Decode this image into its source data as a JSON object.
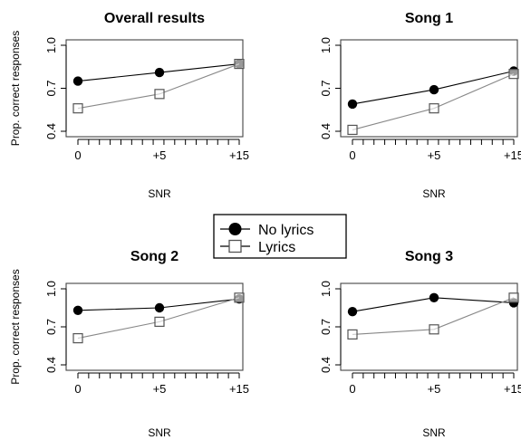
{
  "chart_data": [
    {
      "type": "line",
      "title": "Overall results",
      "xlabel": "SNR",
      "ylabel": "Prop. correct responses",
      "categories": [
        "0",
        "+5",
        "+15"
      ],
      "ylim": [
        0.4,
        1.0
      ],
      "yticks": [
        "0.4",
        "0.7",
        "1.0"
      ],
      "grid": false,
      "series": [
        {
          "name": "No lyrics",
          "marker": "filled-circle",
          "values": [
            0.75,
            0.81,
            0.87
          ]
        },
        {
          "name": "Lyrics",
          "marker": "open-square",
          "values": [
            0.56,
            0.66,
            0.87
          ]
        }
      ]
    },
    {
      "type": "line",
      "title": "Song 1",
      "xlabel": "SNR",
      "ylabel": "",
      "categories": [
        "0",
        "+5",
        "+15"
      ],
      "ylim": [
        0.4,
        1.0
      ],
      "yticks": [
        "0.4",
        "0.7",
        "1.0"
      ],
      "grid": false,
      "series": [
        {
          "name": "No lyrics",
          "marker": "filled-circle",
          "values": [
            0.59,
            0.69,
            0.82
          ]
        },
        {
          "name": "Lyrics",
          "marker": "open-square",
          "values": [
            0.41,
            0.56,
            0.8
          ]
        }
      ]
    },
    {
      "type": "line",
      "title": "Song 2",
      "xlabel": "SNR",
      "ylabel": "Prop. correct responses",
      "categories": [
        "0",
        "+5",
        "+15"
      ],
      "ylim": [
        0.4,
        1.0
      ],
      "yticks": [
        "0.4",
        "0.7",
        "1.0"
      ],
      "grid": false,
      "series": [
        {
          "name": "No lyrics",
          "marker": "filled-circle",
          "values": [
            0.83,
            0.85,
            0.92
          ]
        },
        {
          "name": "Lyrics",
          "marker": "open-square",
          "values": [
            0.61,
            0.74,
            0.93
          ]
        }
      ]
    },
    {
      "type": "line",
      "title": "Song 3",
      "xlabel": "SNR",
      "ylabel": "",
      "categories": [
        "0",
        "+5",
        "+15"
      ],
      "ylim": [
        0.4,
        1.0
      ],
      "yticks": [
        "0.4",
        "0.7",
        "1.0"
      ],
      "grid": false,
      "series": [
        {
          "name": "No lyrics",
          "marker": "filled-circle",
          "values": [
            0.82,
            0.93,
            0.89
          ]
        },
        {
          "name": "Lyrics",
          "marker": "open-square",
          "values": [
            0.64,
            0.68,
            0.93
          ]
        }
      ]
    }
  ],
  "legend": {
    "placement": "center",
    "items": [
      {
        "label": "No lyrics",
        "marker": "filled-circle"
      },
      {
        "label": "Lyrics",
        "marker": "open-square"
      }
    ]
  },
  "colors": {
    "no_lyrics_marker": "#000000",
    "lyrics_marker_fill": "#ffffff",
    "lyrics_marker_stroke": "#555555",
    "lyrics_line": "#888888",
    "axis": "#000000",
    "box": "#444444"
  }
}
